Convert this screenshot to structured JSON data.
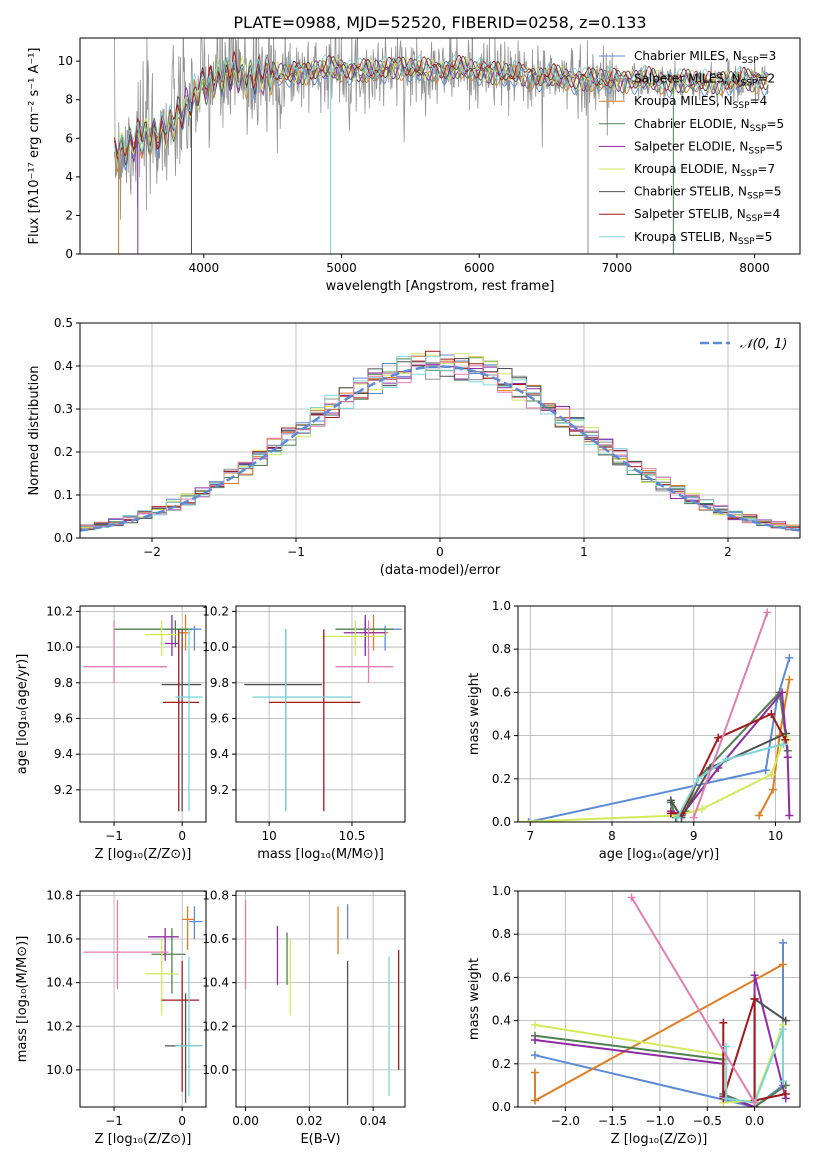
{
  "figure": {
    "title": "PLATE=0988, MJD=52520, FIBERID=0258, z=0.133"
  },
  "colors": {
    "Chabrier MILES": "#5b8bd6",
    "Salpeter MILES": "#929292",
    "Kroupa MILES": "#df7f24",
    "Chabrier ELODIE": "#4f8150",
    "Salpeter ELODIE": "#8e2ca4",
    "Kroupa ELODIE": "#d2ea5c",
    "Chabrier STELIB": "#505050",
    "Salpeter STELIB": "#a4171c",
    "Kroupa STELIB": "#7fd6d8",
    "pink": "#e07fb1"
  },
  "chart_data": [
    {
      "id": "spectrum",
      "type": "line",
      "xlabel": "wavelength [Angstrom, rest frame]",
      "ylabel": "Flux [fλ10⁻¹⁷ erg cm⁻² s⁻¹ A⁻¹]",
      "xlim": [
        3100,
        8330
      ],
      "ylim": [
        0,
        11.2
      ],
      "xticks": [
        4000,
        5000,
        6000,
        7000,
        8000
      ],
      "yticks": [
        0,
        2,
        4,
        6,
        8,
        10
      ],
      "legend_position": "right",
      "legend": [
        {
          "name": "Chabrier MILES, N",
          "sub": "SSP",
          "val": "=3",
          "color": "#5b8bd6"
        },
        {
          "name": "Salpeter MILES, N",
          "sub": "SSP",
          "val": "=2",
          "color": "#929292"
        },
        {
          "name": "Kroupa MILES, N",
          "sub": "SSP",
          "val": "=4",
          "color": "#df7f24"
        },
        {
          "name": "Chabrier ELODIE, N",
          "sub": "SSP",
          "val": "=5",
          "color": "#4f8150"
        },
        {
          "name": "Salpeter ELODIE, N",
          "sub": "SSP",
          "val": "=5",
          "color": "#8e2ca4"
        },
        {
          "name": "Kroupa ELODIE, N",
          "sub": "SSP",
          "val": "=7",
          "color": "#d2ea5c"
        },
        {
          "name": "Chabrier STELIB, N",
          "sub": "SSP",
          "val": "=5",
          "color": "#505050"
        },
        {
          "name": "Salpeter STELIB, N",
          "sub": "SSP",
          "val": "=4",
          "color": "#a4171c"
        },
        {
          "name": "Kroupa STELIB, N",
          "sub": "SSP",
          "val": "=5",
          "color": "#7fd6d8"
        }
      ],
      "continuum": {
        "x": [
          3350,
          3500,
          3600,
          3700,
          3800,
          3900,
          4000,
          4100,
          4200,
          4300,
          4400,
          4600,
          4800,
          5000,
          5200,
          5400,
          5600,
          5800,
          6000,
          6200,
          6400,
          6600,
          6800,
          7000,
          7200,
          7400,
          7600,
          7800,
          8000,
          8100
        ],
        "y": [
          5.3,
          5.8,
          6.0,
          6.3,
          7.0,
          7.8,
          8.7,
          9.2,
          9.3,
          9.1,
          9.3,
          9.3,
          9.5,
          9.6,
          9.4,
          9.7,
          9.5,
          9.6,
          9.5,
          9.3,
          9.2,
          9.1,
          9.0,
          9.0,
          9.0,
          8.9,
          8.9,
          8.9,
          9.0,
          9.0
        ]
      },
      "data_noise_sigma": 1.8,
      "dips": [
        {
          "x": 3380,
          "y": 0
        },
        {
          "x": 3520,
          "y": 0
        },
        {
          "x": 3910,
          "y": 0
        },
        {
          "x": 4920,
          "y": 0
        },
        {
          "x": 6790,
          "y": 0
        },
        {
          "x": 7410,
          "y": 0
        }
      ]
    },
    {
      "id": "residuals",
      "type": "histogram",
      "xlabel": "(data-model)/error",
      "ylabel": "Normed distribution",
      "xlim": [
        -2.5,
        2.5
      ],
      "ylim": [
        0,
        0.5
      ],
      "xticks": [
        -2,
        -1,
        0,
        1,
        2
      ],
      "yticks": [
        0.0,
        0.1,
        0.2,
        0.3,
        0.4,
        0.5
      ],
      "legend_position": "top-right",
      "legend_label": "𝒩(0, 1)",
      "gaussian": {
        "mean": 0,
        "sigma": 1,
        "color": "#5b8bd6"
      },
      "bin_width": 0.1
    },
    {
      "id": "age-vs-Z",
      "type": "errorbar",
      "xlabel": "Z [log₁₀(Z/Z⊙)]",
      "ylabel": "age  [log₁₀(age/yr)]",
      "xlim": [
        -1.5,
        0.35
      ],
      "ylim": [
        9.02,
        10.23
      ],
      "xticks": [
        -1,
        0
      ],
      "yticks": [
        9.2,
        9.4,
        9.6,
        9.8,
        10.0,
        10.2
      ],
      "points": [
        {
          "x": 0.18,
          "y": 10.1,
          "xl": -0.1,
          "xh": 0.28,
          "yl": 9.98,
          "yh": 10.12,
          "color": "#5b8bd6"
        },
        {
          "x": 0.05,
          "y": 10.08,
          "xl": -0.05,
          "xh": 0.12,
          "yl": 9.98,
          "yh": 10.18,
          "color": "#df7f24"
        },
        {
          "x": -0.1,
          "y": 10.1,
          "xl": -1.0,
          "xh": 0.15,
          "yl": 10.0,
          "yh": 10.15,
          "color": "#4f8150"
        },
        {
          "x": -0.15,
          "y": 10.02,
          "xl": -0.25,
          "xh": -0.05,
          "yl": 9.95,
          "yh": 10.18,
          "color": "#8e2ca4"
        },
        {
          "x": -0.3,
          "y": 10.07,
          "xl": -0.55,
          "xh": -0.05,
          "yl": 9.95,
          "yh": 10.15,
          "color": "#d2ea5c"
        },
        {
          "x": 0.0,
          "y": 9.79,
          "xl": -0.3,
          "xh": 0.28,
          "yl": 9.08,
          "yh": 10.1,
          "color": "#505050"
        },
        {
          "x": -0.05,
          "y": 9.69,
          "xl": -0.28,
          "xh": 0.25,
          "yl": 9.08,
          "yh": 10.1,
          "color": "#a4171c"
        },
        {
          "x": 0.1,
          "y": 9.72,
          "xl": -0.1,
          "xh": 0.3,
          "yl": 9.08,
          "yh": 10.1,
          "color": "#7fd6d8"
        },
        {
          "x": -1.0,
          "y": 9.89,
          "xl": -1.45,
          "xh": -0.22,
          "yl": 9.8,
          "yh": 10.15,
          "color": "#e07fb1"
        }
      ]
    },
    {
      "id": "age-vs-mass",
      "type": "errorbar",
      "xlabel": "mass [log₁₀(M/M⊙)]",
      "ylabel": "",
      "xlim": [
        9.8,
        10.82
      ],
      "ylim": [
        9.02,
        10.23
      ],
      "xticks": [
        10.0,
        10.5
      ],
      "yticks": [
        9.2,
        9.4,
        9.6,
        9.8,
        10.0,
        10.2
      ],
      "points": [
        {
          "x": 10.7,
          "y": 10.1,
          "xl": 10.6,
          "xh": 10.8,
          "yl": 9.98,
          "yh": 10.12,
          "color": "#5b8bd6"
        },
        {
          "x": 10.63,
          "y": 10.08,
          "xl": 10.55,
          "xh": 10.72,
          "yl": 9.98,
          "yh": 10.18,
          "color": "#df7f24"
        },
        {
          "x": 10.58,
          "y": 10.1,
          "xl": 10.4,
          "xh": 10.75,
          "yl": 10.0,
          "yh": 10.15,
          "color": "#4f8150"
        },
        {
          "x": 10.58,
          "y": 10.08,
          "xl": 10.45,
          "xh": 10.7,
          "yl": 9.95,
          "yh": 10.18,
          "color": "#8e2ca4"
        },
        {
          "x": 10.52,
          "y": 10.06,
          "xl": 10.32,
          "xh": 10.7,
          "yl": 9.95,
          "yh": 10.15,
          "color": "#d2ea5c"
        },
        {
          "x": 10.1,
          "y": 9.79,
          "xl": 9.85,
          "xh": 10.32,
          "yl": 9.08,
          "yh": 10.1,
          "color": "#505050"
        },
        {
          "x": 10.33,
          "y": 9.69,
          "xl": 10.0,
          "xh": 10.55,
          "yl": 9.08,
          "yh": 10.1,
          "color": "#a4171c"
        },
        {
          "x": 10.1,
          "y": 9.72,
          "xl": 9.9,
          "xh": 10.5,
          "yl": 9.08,
          "yh": 10.1,
          "color": "#7fd6d8"
        },
        {
          "x": 10.6,
          "y": 9.89,
          "xl": 10.4,
          "xh": 10.75,
          "yl": 9.8,
          "yh": 10.15,
          "color": "#e07fb1"
        }
      ]
    },
    {
      "id": "mass-vs-Z",
      "type": "errorbar",
      "xlabel": "Z [log₁₀(Z/Z⊙)]",
      "ylabel": "mass [log₁₀(M/M⊙)]",
      "xlim": [
        -1.5,
        0.35
      ],
      "ylim": [
        9.83,
        10.82
      ],
      "xticks": [
        -1,
        0
      ],
      "yticks": [
        10.0,
        10.2,
        10.4,
        10.6,
        10.8
      ],
      "points": [
        {
          "x": 0.18,
          "y": 10.68,
          "xl": 0.1,
          "xh": 0.3,
          "yl": 10.6,
          "yh": 10.75,
          "color": "#5b8bd6"
        },
        {
          "x": 0.08,
          "y": 10.69,
          "xl": 0.0,
          "xh": 0.18,
          "yl": 10.55,
          "yh": 10.75,
          "color": "#df7f24"
        },
        {
          "x": -0.15,
          "y": 10.53,
          "xl": -0.45,
          "xh": 0.05,
          "yl": 10.35,
          "yh": 10.65,
          "color": "#4f8150"
        },
        {
          "x": -0.25,
          "y": 10.61,
          "xl": -0.5,
          "xh": -0.05,
          "yl": 10.5,
          "yh": 10.65,
          "color": "#8e2ca4"
        },
        {
          "x": -0.3,
          "y": 10.44,
          "xl": -0.55,
          "xh": -0.05,
          "yl": 10.25,
          "yh": 10.6,
          "color": "#d2ea5c"
        },
        {
          "x": 0.05,
          "y": 10.11,
          "xl": -0.25,
          "xh": 0.28,
          "yl": 9.85,
          "yh": 10.35,
          "color": "#505050"
        },
        {
          "x": 0.0,
          "y": 10.32,
          "xl": -0.3,
          "xh": 0.25,
          "yl": 9.9,
          "yh": 10.5,
          "color": "#a4171c"
        },
        {
          "x": 0.1,
          "y": 10.11,
          "xl": -0.1,
          "xh": 0.3,
          "yl": 9.88,
          "yh": 10.52,
          "color": "#7fd6d8"
        },
        {
          "x": -0.95,
          "y": 10.54,
          "xl": -1.45,
          "xh": -0.2,
          "yl": 10.37,
          "yh": 10.78,
          "color": "#e07fb1"
        }
      ]
    },
    {
      "id": "mass-vs-EBV",
      "type": "errorbar",
      "xlabel": "E(B-V)",
      "ylabel": "",
      "xlim": [
        -0.003,
        0.05
      ],
      "ylim": [
        9.83,
        10.82
      ],
      "xticks": [
        0.0,
        0.02,
        0.04
      ],
      "xtick_labels": [
        "0.00",
        "0.02",
        "0.04"
      ],
      "yticks": [
        10.0,
        10.2,
        10.4,
        10.6,
        10.8
      ],
      "points": [
        {
          "x": 0.032,
          "y": 10.68,
          "yl": 10.6,
          "yh": 10.76,
          "color": "#5b8bd6"
        },
        {
          "x": 0.029,
          "y": 10.69,
          "yl": 10.53,
          "yh": 10.75,
          "color": "#df7f24"
        },
        {
          "x": 0.013,
          "y": 10.53,
          "yl": 10.39,
          "yh": 10.63,
          "color": "#4f8150"
        },
        {
          "x": 0.01,
          "y": 10.61,
          "yl": 10.39,
          "yh": 10.66,
          "color": "#8e2ca4"
        },
        {
          "x": 0.014,
          "y": 10.44,
          "yl": 10.25,
          "yh": 10.6,
          "color": "#d2ea5c"
        },
        {
          "x": 0.032,
          "y": 10.11,
          "yl": 9.84,
          "yh": 10.5,
          "color": "#505050"
        },
        {
          "x": 0.048,
          "y": 10.32,
          "yl": 10.0,
          "yh": 10.55,
          "color": "#a4171c"
        },
        {
          "x": 0.045,
          "y": 10.11,
          "yl": 9.88,
          "yh": 10.52,
          "color": "#7fd6d8"
        },
        {
          "x": 0.0,
          "y": 10.54,
          "yl": 10.37,
          "yh": 10.78,
          "color": "#e07fb1"
        }
      ]
    },
    {
      "id": "weight-vs-age",
      "type": "line",
      "xlabel": "age  [log₁₀(age/yr)]",
      "ylabel": "mass weight",
      "xlim": [
        6.85,
        10.3
      ],
      "ylim": [
        0,
        1.0
      ],
      "xticks": [
        7,
        8,
        9,
        10
      ],
      "yticks": [
        0.0,
        0.2,
        0.4,
        0.6,
        0.8,
        1.0
      ],
      "series": [
        {
          "color": "#5b8bd6",
          "x": [
            6.98,
            9.88,
            10.02,
            10.17
          ],
          "y": [
            0.0,
            0.24,
            0.57,
            0.76
          ]
        },
        {
          "color": "#df7f24",
          "x": [
            9.8,
            9.97,
            10.05,
            10.17
          ],
          "y": [
            0.03,
            0.15,
            0.4,
            0.66
          ]
        },
        {
          "color": "#4f8150",
          "x": [
            8.72,
            8.78,
            8.9,
            9.05,
            10.05,
            10.15
          ],
          "y": [
            0.09,
            0.02,
            0.05,
            0.2,
            0.6,
            0.33
          ]
        },
        {
          "color": "#8e2ca4",
          "x": [
            8.72,
            8.85,
            9.3,
            10.08,
            10.15,
            10.17
          ],
          "y": [
            0.05,
            0.03,
            0.25,
            0.6,
            0.3,
            0.03
          ]
        },
        {
          "color": "#d2ea5c",
          "x": [
            6.85,
            8.8,
            9.1,
            9.95,
            10.12,
            10.15
          ],
          "y": [
            0.0,
            0.03,
            0.06,
            0.22,
            0.4,
            0.38
          ]
        },
        {
          "color": "#505050",
          "x": [
            8.72,
            8.85,
            9.2,
            10.13
          ],
          "y": [
            0.1,
            0.02,
            0.25,
            0.41
          ]
        },
        {
          "color": "#a4171c",
          "x": [
            8.72,
            8.85,
            9.3,
            9.95,
            10.12
          ],
          "y": [
            0.04,
            0.04,
            0.39,
            0.5,
            0.38
          ]
        },
        {
          "color": "#7fd6d8",
          "x": [
            8.8,
            9.05,
            9.4,
            10.1
          ],
          "y": [
            0.02,
            0.2,
            0.29,
            0.36
          ]
        },
        {
          "color": "#e07fb1",
          "x": [
            9.0,
            9.9
          ],
          "y": [
            0.02,
            0.97
          ]
        }
      ]
    },
    {
      "id": "weight-vs-Z",
      "type": "line",
      "xlabel": "Z [log₁₀(Z/Z⊙)]",
      "ylabel": "mass weight",
      "xlim": [
        -2.5,
        0.48
      ],
      "ylim": [
        0,
        1.0
      ],
      "xticks": [
        -2.0,
        -1.5,
        -1.0,
        -0.5,
        0.0
      ],
      "xtick_labels": [
        "−2.0",
        "−1.5",
        "−1.0",
        "−0.5",
        "0.0"
      ],
      "yticks": [
        0.0,
        0.2,
        0.4,
        0.6,
        0.8,
        1.0
      ],
      "series": [
        {
          "color": "#5b8bd6",
          "x": [
            -2.32,
            0.0,
            0.3,
            0.3
          ],
          "y": [
            0.24,
            0.0,
            0.1,
            0.76
          ]
        },
        {
          "color": "#df7f24",
          "x": [
            -2.32,
            -2.32,
            0.3
          ],
          "y": [
            0.16,
            0.03,
            0.66
          ]
        },
        {
          "color": "#4f8150",
          "x": [
            -2.32,
            -0.33,
            -0.33,
            0.0,
            0.33
          ],
          "y": [
            0.33,
            0.22,
            0.06,
            0.0,
            0.1
          ]
        },
        {
          "color": "#8e2ca4",
          "x": [
            -2.32,
            -0.33,
            -0.33,
            0.0,
            0.0,
            0.33
          ],
          "y": [
            0.31,
            0.2,
            0.05,
            0.0,
            0.61,
            0.04
          ]
        },
        {
          "color": "#d2ea5c",
          "x": [
            -2.32,
            -0.33,
            -0.33,
            0.0,
            0.3
          ],
          "y": [
            0.38,
            0.24,
            0.02,
            0.03,
            0.38
          ]
        },
        {
          "color": "#505050",
          "x": [
            0.0,
            0.33
          ],
          "y": [
            0.5,
            0.4
          ]
        },
        {
          "color": "#a4171c",
          "x": [
            -0.33,
            -0.33,
            0.0,
            0.0,
            0.33
          ],
          "y": [
            0.39,
            0.04,
            0.5,
            0.03,
            0.06
          ]
        },
        {
          "color": "#7fd6d8",
          "x": [
            -0.3,
            -0.3,
            0.0,
            0.3,
            0.3
          ],
          "y": [
            0.28,
            0.04,
            0.02,
            0.36,
            0.12
          ]
        },
        {
          "color": "#e07fb1",
          "x": [
            -1.3,
            0.0
          ],
          "y": [
            0.97,
            0.02
          ]
        }
      ]
    }
  ]
}
